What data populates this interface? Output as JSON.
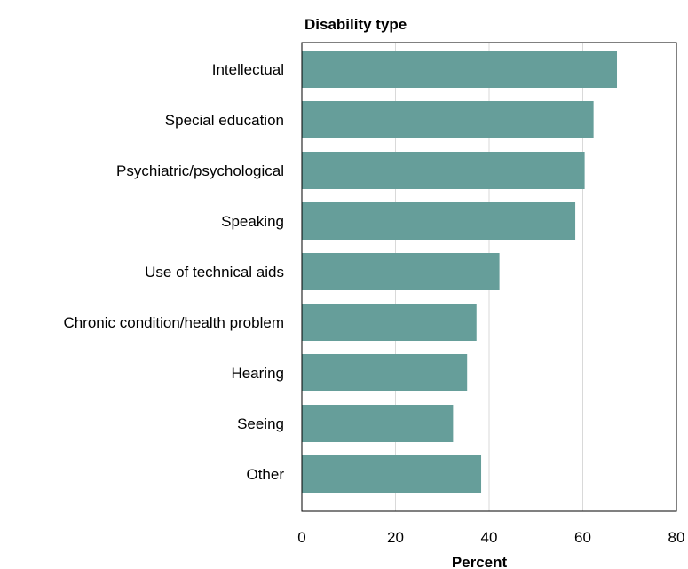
{
  "chart_data": {
    "type": "bar",
    "orientation": "horizontal",
    "title": "",
    "ylabel": "Disability type",
    "xlabel": "Percent",
    "categories": [
      "Intellectual",
      "Special education",
      "Psychiatric/psychological",
      "Speaking",
      "Use of technical aids",
      "Chronic condition/health problem",
      "Hearing",
      "Seeing",
      "Other"
    ],
    "values": [
      67.3,
      62.3,
      60.4,
      58.4,
      42.2,
      37.3,
      35.3,
      32.3,
      38.3
    ],
    "xlim": [
      0,
      80
    ],
    "xticks": [
      0,
      20,
      40,
      60,
      80
    ],
    "grid": true,
    "colors": {
      "bar": "#669e9a",
      "grid": "#d9d9d9",
      "frame": "#000000"
    }
  }
}
